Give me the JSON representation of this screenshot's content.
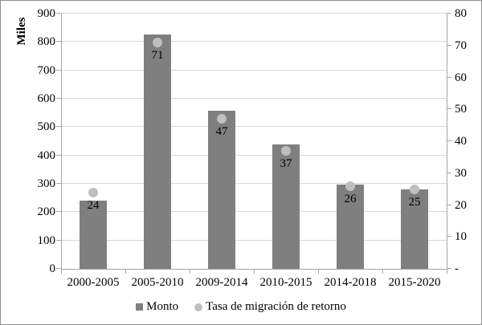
{
  "chart_data": {
    "type": "combo",
    "subtypes": [
      "bar",
      "scatter"
    ],
    "title": "",
    "categories": [
      "2000-2005",
      "2005-2010",
      "2009-2014",
      "2010-2015",
      "2014-2018",
      "2015-2020"
    ],
    "series": [
      {
        "name": "Monto",
        "chart_type": "bar",
        "axis": "left",
        "color": "#7f7f7f",
        "values": [
          240,
          825,
          557,
          440,
          297,
          280
        ]
      },
      {
        "name": "Tasa de migración de retorno",
        "chart_type": "scatter",
        "axis": "right",
        "color": "#bfbfbf",
        "values": [
          24,
          71,
          47,
          37,
          26,
          25
        ],
        "data_labels": [
          "24",
          "71",
          "47",
          "37",
          "26",
          "25"
        ]
      }
    ],
    "left_axis": {
      "title": "Miles",
      "min": 0,
      "max": 900,
      "step": 100,
      "tick_labels": [
        "0",
        "100",
        "200",
        "300",
        "400",
        "500",
        "600",
        "700",
        "800",
        "900"
      ]
    },
    "right_axis": {
      "title": "",
      "min": 0,
      "max": 80,
      "step": 10,
      "tick_labels": [
        "-",
        "10",
        "20",
        "30",
        "40",
        "50",
        "60",
        "70",
        "80"
      ]
    },
    "grid": true,
    "legend_position": "bottom"
  },
  "styles": {
    "bar_color": "#7f7f7f",
    "marker_color": "#bfbfbf",
    "grid_color": "#d6d6d6",
    "axis_color": "#a6a6a6",
    "text_color": "#000000",
    "background": "#ffffff",
    "frame_border_color": "#8f8f8f"
  }
}
